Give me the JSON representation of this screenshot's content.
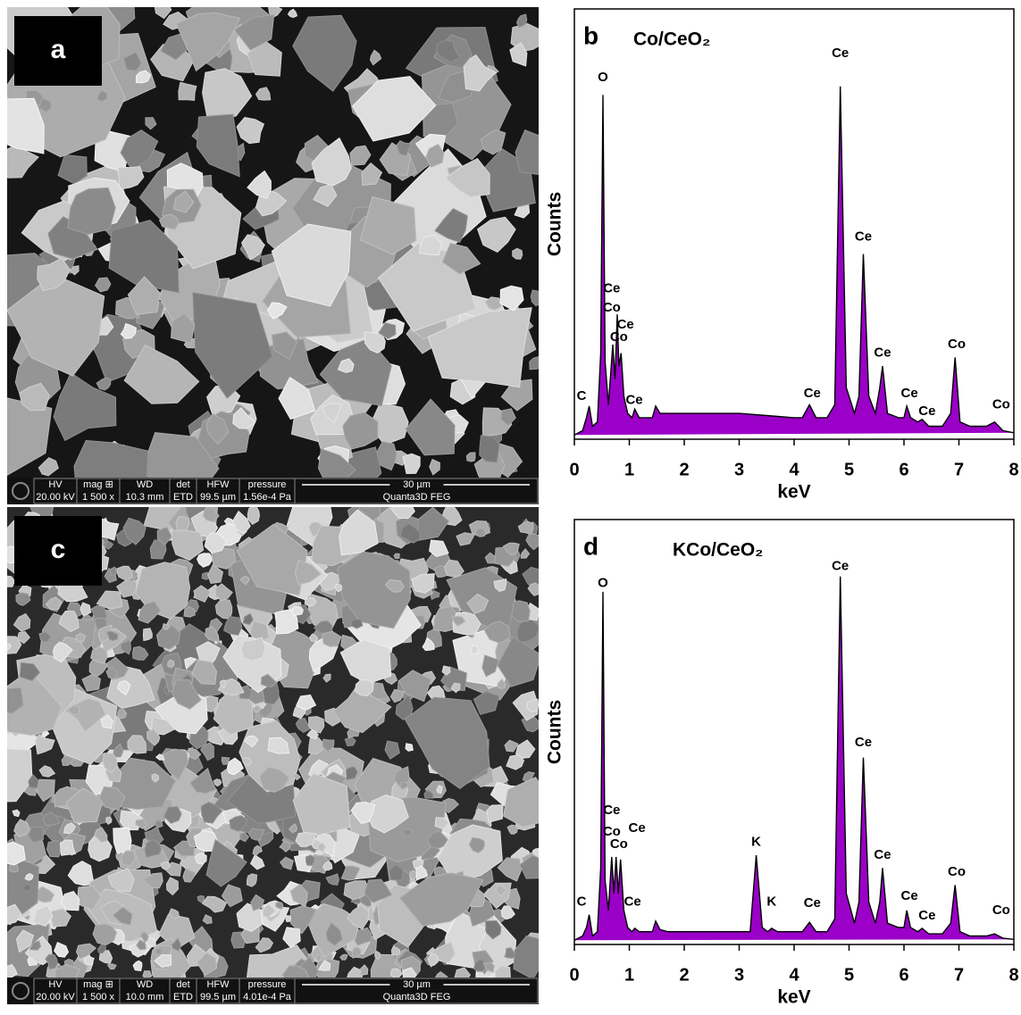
{
  "chart_data": [
    {
      "type": "micrograph",
      "label": "a",
      "info_bar": [
        [
          "HV",
          "20.00 kV"
        ],
        [
          "mag ⊞",
          "1 500 x"
        ],
        [
          "WD",
          "10.3 mm"
        ],
        [
          "det",
          "ETD"
        ],
        [
          "HFW",
          "99.5 µm"
        ],
        [
          "pressure",
          "1.56e-4 Pa"
        ]
      ],
      "scale_bar": "30 µm",
      "instrument": "Quanta3D FEG"
    },
    {
      "type": "micrograph",
      "label": "c",
      "info_bar": [
        [
          "HV",
          "20.00 kV"
        ],
        [
          "mag ⊞",
          "1 500 x"
        ],
        [
          "WD",
          "10.0 mm"
        ],
        [
          "det",
          "ETD"
        ],
        [
          "HFW",
          "99.5 µm"
        ],
        [
          "pressure",
          "4.01e-4 Pa"
        ]
      ],
      "scale_bar": "30 µm",
      "instrument": "Quanta3D FEG"
    },
    {
      "type": "area",
      "label": "b",
      "title": "Co/CeO₂",
      "x_label": "keV",
      "y_label": "Counts",
      "color": "#9b00c8",
      "x": [
        0,
        0.15,
        0.22,
        0.27,
        0.33,
        0.42,
        0.48,
        0.52,
        0.56,
        0.62,
        0.66,
        0.7,
        0.74,
        0.78,
        0.81,
        0.85,
        0.9,
        0.97,
        1.05,
        1.1,
        1.18,
        1.3,
        1.42,
        1.48,
        1.56,
        1.7,
        2.0,
        2.5,
        3.0,
        3.5,
        4.0,
        4.15,
        4.28,
        4.4,
        4.6,
        4.74,
        4.84,
        4.95,
        5.1,
        5.18,
        5.26,
        5.36,
        5.48,
        5.56,
        5.61,
        5.7,
        5.9,
        6.0,
        6.05,
        6.12,
        6.25,
        6.33,
        6.45,
        6.7,
        6.85,
        6.93,
        7.02,
        7.2,
        7.5,
        7.65,
        7.8,
        8.0
      ],
      "values": [
        1,
        2,
        5,
        7.7,
        3,
        4,
        20,
        80,
        18,
        8,
        15,
        22,
        14,
        29,
        17,
        20,
        10,
        6,
        5,
        7,
        5,
        5,
        5,
        7.7,
        6,
        6,
        6,
        6,
        6,
        5.5,
        5,
        5,
        8,
        5,
        5,
        8,
        82,
        12,
        6,
        10,
        43,
        10,
        6,
        12,
        17,
        6,
        5,
        5,
        7.7,
        5,
        4,
        4.6,
        3,
        3,
        6,
        19,
        4,
        3,
        3,
        4,
        2,
        1.5
      ],
      "xlim": [
        0,
        8
      ],
      "xticks": [
        0,
        1,
        2,
        3,
        4,
        5,
        6,
        7,
        8
      ],
      "ylim": [
        0,
        100
      ],
      "annotations": [
        {
          "text": "C",
          "x": 0.13,
          "y": 10
        },
        {
          "text": "O",
          "x": 0.52,
          "y": 84
        },
        {
          "text": "Ce",
          "x": 0.68,
          "y": 35
        },
        {
          "text": "Co",
          "x": 0.68,
          "y": 30.5
        },
        {
          "text": "Ce",
          "x": 0.93,
          "y": 26.6
        },
        {
          "text": "Co",
          "x": 0.81,
          "y": 23.6
        },
        {
          "text": "Ce",
          "x": 1.09,
          "y": 9
        },
        {
          "text": "Ce",
          "x": 4.33,
          "y": 10.6
        },
        {
          "text": "Ce",
          "x": 4.84,
          "y": 89.6
        },
        {
          "text": "Ce",
          "x": 5.26,
          "y": 47
        },
        {
          "text": "Ce",
          "x": 5.61,
          "y": 20
        },
        {
          "text": "Ce",
          "x": 6.1,
          "y": 10.6
        },
        {
          "text": "Ce",
          "x": 6.42,
          "y": 6.4
        },
        {
          "text": "Co",
          "x": 6.96,
          "y": 22
        },
        {
          "text": "Co",
          "x": 7.77,
          "y": 8
        }
      ]
    },
    {
      "type": "area",
      "label": "d",
      "title": "KCo/CeO₂",
      "x_label": "keV",
      "y_label": "Counts",
      "color": "#9b00c8",
      "x": [
        0,
        0.15,
        0.22,
        0.27,
        0.33,
        0.42,
        0.48,
        0.52,
        0.56,
        0.62,
        0.68,
        0.72,
        0.76,
        0.8,
        0.84,
        0.9,
        0.97,
        1.05,
        1.1,
        1.18,
        1.3,
        1.42,
        1.48,
        1.56,
        1.7,
        2.0,
        2.5,
        3.0,
        3.2,
        3.31,
        3.42,
        3.52,
        3.59,
        3.7,
        4.0,
        4.15,
        4.28,
        4.4,
        4.6,
        4.74,
        4.84,
        4.95,
        5.1,
        5.18,
        5.26,
        5.36,
        5.48,
        5.56,
        5.61,
        5.7,
        5.9,
        6.0,
        6.05,
        6.12,
        6.25,
        6.33,
        6.45,
        6.7,
        6.85,
        6.93,
        7.02,
        7.2,
        7.5,
        7.65,
        7.8,
        8.0
      ],
      "values": [
        1,
        2,
        4,
        7,
        2,
        3,
        18,
        83,
        15,
        8,
        20.6,
        12,
        20.6,
        12,
        20,
        8,
        4,
        3,
        3.8,
        3,
        3,
        3,
        5.5,
        3.5,
        3,
        3,
        3,
        3,
        3,
        21,
        4,
        3,
        3.8,
        3,
        3,
        3,
        5.2,
        3,
        3,
        6,
        86.6,
        12,
        5,
        10,
        44,
        10,
        5,
        10,
        18,
        5,
        4,
        4,
        8,
        4,
        3,
        3.8,
        2.5,
        2.5,
        5,
        14,
        3,
        2,
        2,
        2.5,
        1.5,
        1.2
      ],
      "xlim": [
        0,
        8
      ],
      "xticks": [
        0,
        1,
        2,
        3,
        4,
        5,
        6,
        7,
        8
      ],
      "ylim": [
        0,
        100
      ],
      "annotations": [
        {
          "text": "C",
          "x": 0.13,
          "y": 10
        },
        {
          "text": "O",
          "x": 0.52,
          "y": 85
        },
        {
          "text": "Ce",
          "x": 0.68,
          "y": 31.5
        },
        {
          "text": "Co",
          "x": 0.68,
          "y": 26.5
        },
        {
          "text": "Ce",
          "x": 1.14,
          "y": 27.3
        },
        {
          "text": "Co",
          "x": 0.81,
          "y": 23.5
        },
        {
          "text": "Ce",
          "x": 1.06,
          "y": 10
        },
        {
          "text": "K",
          "x": 3.31,
          "y": 24
        },
        {
          "text": "K",
          "x": 3.59,
          "y": 10
        },
        {
          "text": "Ce",
          "x": 4.33,
          "y": 9.7
        },
        {
          "text": "Ce",
          "x": 4.84,
          "y": 89
        },
        {
          "text": "Ce",
          "x": 5.26,
          "y": 47.5
        },
        {
          "text": "Ce",
          "x": 5.61,
          "y": 21
        },
        {
          "text": "Ce",
          "x": 6.1,
          "y": 11.3
        },
        {
          "text": "Ce",
          "x": 6.42,
          "y": 6.7
        },
        {
          "text": "Co",
          "x": 6.96,
          "y": 17
        },
        {
          "text": "Co",
          "x": 7.77,
          "y": 8
        }
      ]
    }
  ]
}
